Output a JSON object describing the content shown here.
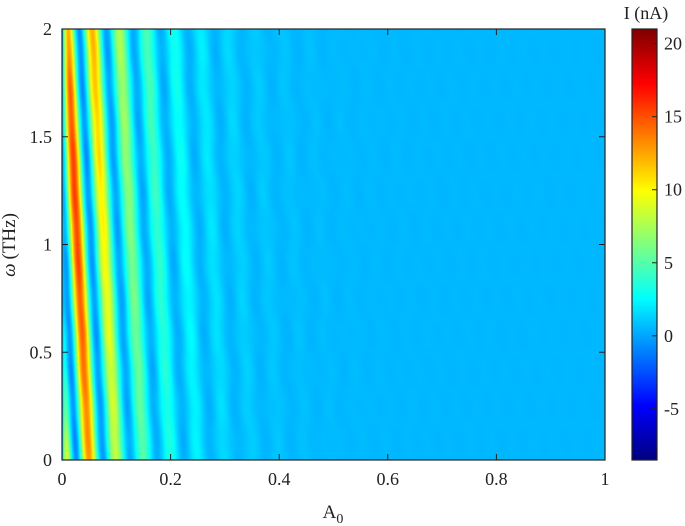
{
  "chart_data": {
    "type": "heatmap",
    "xlabel": "A",
    "xlabel_subscript": "0",
    "ylabel_symbol": "ω",
    "ylabel_unit": "(THz)",
    "xlim": [
      0,
      1
    ],
    "ylim": [
      0,
      2
    ],
    "x_ticks": [
      {
        "value": 0,
        "label": "0"
      },
      {
        "value": 0.2,
        "label": "0.2"
      },
      {
        "value": 0.4,
        "label": "0.4"
      },
      {
        "value": 0.6,
        "label": "0.6"
      },
      {
        "value": 0.8,
        "label": "0.8"
      },
      {
        "value": 1,
        "label": "1"
      }
    ],
    "y_ticks": [
      {
        "value": 0,
        "label": "0"
      },
      {
        "value": 0.5,
        "label": "0.5"
      },
      {
        "value": 1,
        "label": "1"
      },
      {
        "value": 1.5,
        "label": "1.5"
      },
      {
        "value": 2,
        "label": "2"
      }
    ],
    "colorbar": {
      "label": "I (nA)",
      "range": [
        -8.5,
        21
      ],
      "colormap": "jet",
      "ticks": [
        {
          "value": -5,
          "label": "-5"
        },
        {
          "value": 0,
          "label": "0"
        },
        {
          "value": 5,
          "label": "5"
        },
        {
          "value": 10,
          "label": "10"
        },
        {
          "value": 15,
          "label": "15"
        },
        {
          "value": 20,
          "label": "20"
        }
      ]
    },
    "field_description": {
      "baseline_value": 0.5,
      "peak_value": 20.5,
      "stripe_orientation": "diagonal, tilted toward smaller A0 at higher ω",
      "decay_A0": 0.1,
      "stripe_period_A0": 0.05
    },
    "grid": false,
    "legend": "none"
  }
}
